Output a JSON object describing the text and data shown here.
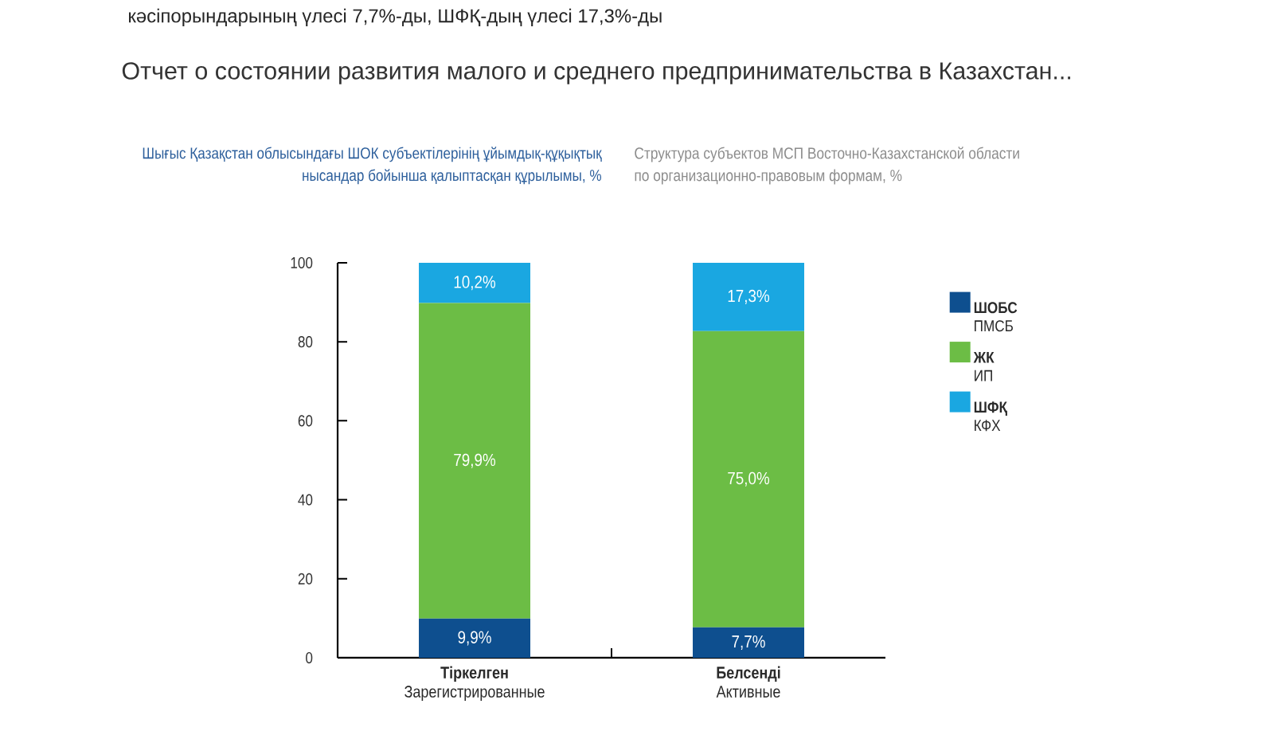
{
  "chart_data": {
    "type": "bar",
    "title": "Шығыс Қазақстан облысындағы ШОК субъектілерінің ұйымдық-құқықтық нысандар бойынша қалыптасқан құрылымы, %",
    "subtitle": "Структура субъектов МСП Восточно-Казахстанской области по организационно-правовым формам, %",
    "categories": [
      "**Тіркелген** Зарегистрированные",
      "**Белсенді** Активные"
    ],
    "series": [
      {
        "name": "**ШОБС** ПМСБ",
        "color": "#0e4f8f",
        "values": [
          9.9,
          7.7
        ],
        "value_labels": [
          "9,9%",
          "7,7%"
        ]
      },
      {
        "name": "**ЖК** ИП",
        "color": "#6cbd45",
        "values": [
          79.9,
          75.0
        ],
        "value_labels": [
          "79,9%",
          "75,0%"
        ]
      },
      {
        "name": "**ШФҚ** КФХ",
        "color": "#1aa7e1",
        "values": [
          10.2,
          17.3
        ],
        "value_labels": [
          "10,2%",
          "17,3%"
        ]
      }
    ],
    "stacked": true,
    "ylim": [
      0,
      100
    ],
    "yticks": [
      0,
      20,
      40,
      60,
      80,
      100
    ],
    "legend": "right",
    "annotations": [
      "кәсіпорындарының үлесі 7,7%-ды, ШФҚ-дың үлесі 17,3%-ды",
      "Отчет о состоянии развития малого и среднего предпринимательства в Казахстан..."
    ]
  }
}
